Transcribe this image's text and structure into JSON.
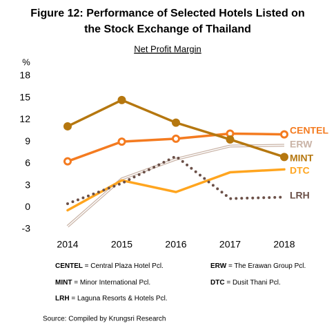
{
  "chart_data": {
    "type": "line",
    "title": "Figure 12: Performance of Selected Hotels Listed on",
    "title_line2": "the Stock Exchange of Thailand",
    "subtitle": "Net Profit Margin",
    "y_label": "%",
    "categories": [
      "2014",
      "2015",
      "2016",
      "2017",
      "2018"
    ],
    "ylim": [
      -3,
      18
    ],
    "yticks": [
      -3,
      0,
      3,
      6,
      9,
      12,
      15,
      18
    ],
    "series": [
      {
        "name": "CENTEL",
        "color": "#f47b20",
        "marker": "open-circle",
        "style": "solid",
        "values": [
          6.3,
          9.0,
          9.4,
          10.1,
          10.0
        ]
      },
      {
        "name": "ERW",
        "color": "#c9b3a6",
        "style": "double",
        "values": [
          -2.6,
          3.9,
          6.6,
          8.4,
          8.5
        ]
      },
      {
        "name": "MINT",
        "color": "#b5770f",
        "marker": "circle",
        "style": "solid",
        "values": [
          11.1,
          14.7,
          11.6,
          9.3,
          6.9
        ]
      },
      {
        "name": "DTC",
        "color": "#ffa51f",
        "style": "solid",
        "values": [
          -0.4,
          3.7,
          2.1,
          4.8,
          5.2
        ]
      },
      {
        "name": "LRH",
        "color": "#6b5048",
        "style": "dotted",
        "values": [
          0.5,
          3.3,
          7.0,
          1.2,
          1.4
        ]
      }
    ],
    "notes": [
      {
        "abbr": "CENTEL",
        "text": "= Central Plaza Hotel Pcl."
      },
      {
        "abbr": "ERW",
        "text": "= The Erawan Group Pcl."
      },
      {
        "abbr": "MINT",
        "text": "= Minor International Pcl."
      },
      {
        "abbr": "DTC",
        "text": "= Dusit Thani Pcl."
      },
      {
        "abbr": "LRH",
        "text": "= Laguna Resorts & Hotels Pcl."
      }
    ],
    "source": "Source: Compiled by Krungsri Research"
  }
}
